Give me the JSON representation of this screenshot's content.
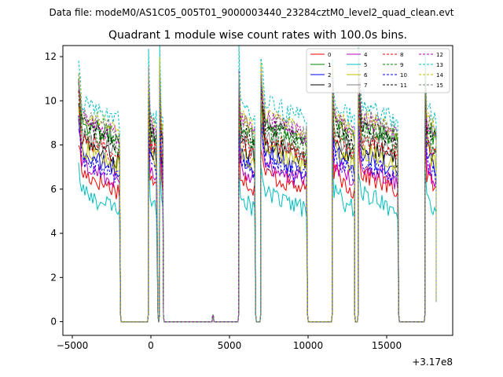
{
  "chart_data": {
    "type": "line",
    "suptitle": "Data file: modeM0/AS1C05_005T01_9000003440_23284cztM0_level2_quad_clean.evt",
    "title": "Quadrant 1 module wise count rates with 100.0s bins.",
    "xlabel": "",
    "ylabel": "",
    "x_offset_label": "+3.17e8",
    "xlim": [
      -5600,
      19200
    ],
    "ylim": [
      -0.62,
      12.5
    ],
    "xticks": [
      -5000,
      0,
      5000,
      10000,
      15000
    ],
    "xtick_labels": [
      "−5000",
      "0",
      "5000",
      "10000",
      "15000"
    ],
    "yticks": [
      0,
      2,
      4,
      6,
      8,
      10,
      12
    ],
    "ytick_labels": [
      "0",
      "2",
      "4",
      "6",
      "8",
      "10",
      "12"
    ],
    "grid": false,
    "legend_position": "top-right",
    "legend_columns": 4,
    "segments": [
      {
        "on": [
          -4600,
          -1950
        ],
        "off": [
          -1950,
          -150
        ]
      },
      {
        "on": [
          -150,
          430
        ],
        "off": [
          430,
          560
        ]
      },
      {
        "on": [
          560,
          780
        ],
        "off": [
          780,
          3950
        ]
      },
      {
        "on": [
          3950,
          3950
        ],
        "off": [
          3950,
          5600
        ]
      },
      {
        "on": [
          5600,
          6650
        ],
        "off": [
          6650,
          7000
        ]
      },
      {
        "on": [
          7000,
          9950
        ],
        "off": [
          9950,
          11550
        ]
      },
      {
        "on": [
          11550,
          12950
        ],
        "off": [
          12950,
          13200
        ]
      },
      {
        "on": [
          13200,
          15750
        ],
        "off": [
          15750,
          17450
        ]
      },
      {
        "on": [
          17450,
          18150
        ],
        "off": [
          18150,
          18150
        ]
      }
    ],
    "series": [
      {
        "name": "0",
        "color": "#ff0000",
        "dash": "solid",
        "level": 6.3
      },
      {
        "name": "1",
        "color": "#008000",
        "dash": "solid",
        "level": 8.6
      },
      {
        "name": "2",
        "color": "#0000ff",
        "dash": "solid",
        "level": 7.2
      },
      {
        "name": "3",
        "color": "#000000",
        "dash": "solid",
        "level": 7.7
      },
      {
        "name": "4",
        "color": "#bf00bf",
        "dash": "solid",
        "level": 6.7
      },
      {
        "name": "5",
        "color": "#00bfbf",
        "dash": "solid",
        "level": 5.4
      },
      {
        "name": "6",
        "color": "#bfbf00",
        "dash": "solid",
        "level": 7.4
      },
      {
        "name": "7",
        "color": "#808080",
        "dash": "solid",
        "level": 8.0
      },
      {
        "name": "8",
        "color": "#ff0000",
        "dash": "dashed",
        "level": 7.9
      },
      {
        "name": "9",
        "color": "#008000",
        "dash": "dashed",
        "level": 8.3
      },
      {
        "name": "10",
        "color": "#0000ff",
        "dash": "dashed",
        "level": 6.9
      },
      {
        "name": "11",
        "color": "#000000",
        "dash": "dashed",
        "level": 8.5
      },
      {
        "name": "12",
        "color": "#bf00bf",
        "dash": "dashed",
        "level": 8.8
      },
      {
        "name": "13",
        "color": "#00bfbf",
        "dash": "dashed",
        "level": 9.5
      },
      {
        "name": "14",
        "color": "#bfbf00",
        "dash": "dashed",
        "level": 9.0
      },
      {
        "name": "15",
        "color": "#808080",
        "dash": "dashed",
        "level": 8.9
      }
    ]
  }
}
